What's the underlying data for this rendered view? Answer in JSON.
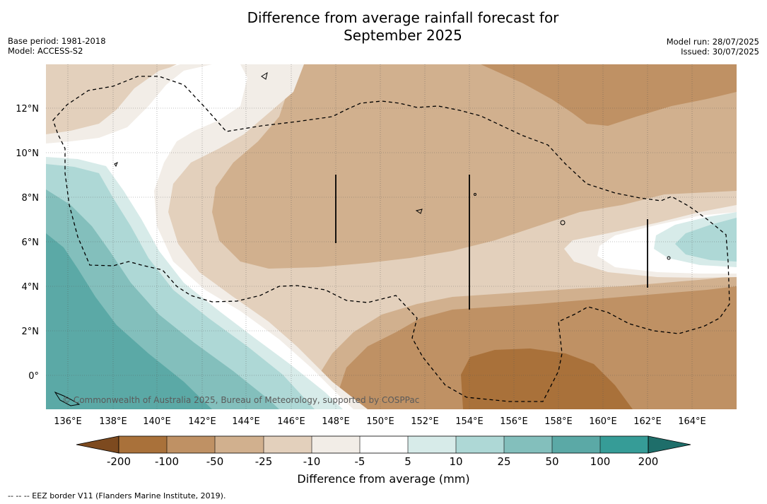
{
  "title_line1": "Difference from average rainfall forecast for",
  "title_line2": "September 2025",
  "meta_left": [
    "Base period: 1981-2018",
    "Model: ACCESS-S2"
  ],
  "meta_right": [
    "Model run: 28/07/2025",
    "Issued: 30/07/2025"
  ],
  "map": {
    "lon_labels": [
      "136°E",
      "138°E",
      "140°E",
      "142°E",
      "144°E",
      "146°E",
      "148°E",
      "150°E",
      "152°E",
      "154°E",
      "156°E",
      "158°E",
      "160°E",
      "162°E",
      "164°E"
    ],
    "lat_labels": [
      "12°N",
      "10°N",
      "8°N",
      "6°N",
      "4°N",
      "2°N",
      "0°"
    ],
    "copyright": "© Commonwealth of Australia 2025, Bureau of Meteorology, supported by COSPPac",
    "colors": {
      "lt_-200": "#7d4a1f",
      "-200_-100": "#a9713a",
      "-100_-50": "#bf9164",
      "-50_-25": "#d1b08e",
      "-25_-10": "#e3d0bc",
      "-10_-5": "#f2ede7",
      "-5_5": "#ffffff",
      "5_10": "#d7ebe9",
      "10_25": "#aed8d6",
      "25_50": "#83bfbc",
      "50_100": "#5ba9a6",
      "100_200": "#369c97",
      "gt_200": "#1e6e6a"
    }
  },
  "colorbar": {
    "tick_labels": [
      "-200",
      "-100",
      "-50",
      "-25",
      "-10",
      "-5",
      "5",
      "10",
      "25",
      "50",
      "100",
      "200"
    ],
    "label": "Difference from average (mm)"
  },
  "footnote": "--  --  -- EEZ border V11 (Flanders Marine Institute, 2019)."
}
